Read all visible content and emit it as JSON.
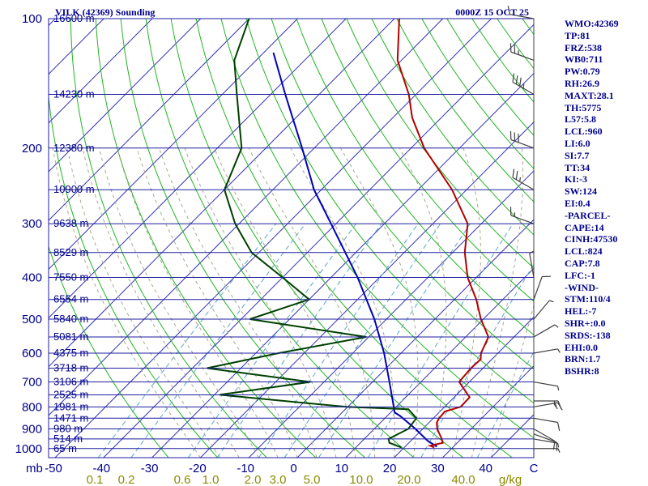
{
  "header": {
    "station": "VILK (42369) Sounding",
    "datetime": "0000Z 15 OCT 25"
  },
  "indices": [
    "WMO:42369",
    "TP:81",
    "FRZ:538",
    "WB0:711",
    "PW:0.79",
    "RH:26.9",
    "MAXT:28.1",
    "TH:5775",
    "L57:5.8",
    "LCL:960",
    "LI:6.0",
    "SI:7.7",
    "TT:34",
    "KI:-3",
    "SW:124",
    "EI:0.4",
    "-PARCEL-",
    "CAPE:14",
    "CINH:47530",
    "LCL:824",
    "CAP:7.8",
    "LFC:-1",
    "-WIND-",
    "STM:110/4",
    "HEL:-7",
    "SHR+:0.0",
    "SRDS:-138",
    "EHI:0.0",
    "BRN:1.7",
    "BSHR:8"
  ],
  "colors": {
    "isobar": "#1e1ea0",
    "isotherm": "#3232b4",
    "dry_adiabat": "#22b422",
    "moist_adiabat": "#a8a890",
    "mixing_ratio": "#5aa8c8",
    "temperature": "#b40000",
    "dewpoint": "#004000",
    "parcel": "#0000b4",
    "wind": "#404040",
    "text": "#00008b"
  },
  "chart_data": {
    "type": "skew-t log-p",
    "pressure_ticks": [
      "100",
      "200",
      "300",
      "400",
      "500",
      "600",
      "700",
      "800",
      "900",
      "1000"
    ],
    "pressure_levels": [
      100,
      200,
      300,
      400,
      500,
      600,
      700,
      800,
      900,
      1000
    ],
    "pressure_unit_label": "mb",
    "temperature_ticks": [
      "-50",
      "-40",
      "-30",
      "-20",
      "-10",
      "0",
      "10",
      "20",
      "30",
      "40",
      "C"
    ],
    "mixing_ratio_unit_label": "g/kg",
    "mixing_ratio_ticks": [
      {
        "label": "0.1",
        "value": 0.1
      },
      {
        "label": "0.2",
        "value": 0.2
      },
      {
        "label": "0.6",
        "value": 0.6
      },
      {
        "label": "1.0",
        "value": 1.0
      },
      {
        "label": "2.0",
        "value": 2.0
      },
      {
        "label": "3.0",
        "value": 3.0
      },
      {
        "label": "5.0",
        "value": 5.0
      },
      {
        "label": "10.0",
        "value": 10.0
      },
      {
        "label": "20.0",
        "value": 20.0
      },
      {
        "label": "40.0",
        "value": 40.0
      }
    ],
    "height_labels": [
      {
        "label": "16600 m",
        "p": 100
      },
      {
        "label": "14230 m",
        "p": 150
      },
      {
        "label": "12380 m",
        "p": 200
      },
      {
        "label": "10900 m",
        "p": 250
      },
      {
        "label": "9638 m",
        "p": 300
      },
      {
        "label": "8529 m",
        "p": 350
      },
      {
        "label": "7550 m",
        "p": 400
      },
      {
        "label": "6554 m",
        "p": 450
      },
      {
        "label": "5840 m",
        "p": 500
      },
      {
        "label": "5081 m",
        "p": 550
      },
      {
        "label": "4375 m",
        "p": 600
      },
      {
        "label": "3718 m",
        "p": 650
      },
      {
        "label": "3106 m",
        "p": 700
      },
      {
        "label": "2525 m",
        "p": 750
      },
      {
        "label": "1981 m",
        "p": 800
      },
      {
        "label": "1471 m",
        "p": 850
      },
      {
        "label": "980 m",
        "p": 900
      },
      {
        "label": "514 m",
        "p": 950
      },
      {
        "label": "65 m",
        "p": 1000
      }
    ],
    "temperature_profile": [
      [
        994,
        26.2
      ],
      [
        985,
        25.0
      ],
      [
        970,
        27.0
      ],
      [
        950,
        26.0
      ],
      [
        900,
        23.0
      ],
      [
        870,
        21.6
      ],
      [
        850,
        21.2
      ],
      [
        820,
        21.0
      ],
      [
        800,
        23.3
      ],
      [
        760,
        23.2
      ],
      [
        700,
        17.9
      ],
      [
        650,
        17.5
      ],
      [
        620,
        17.7
      ],
      [
        600,
        16.5
      ],
      [
        550,
        14.7
      ],
      [
        500,
        9.5
      ],
      [
        450,
        4.5
      ],
      [
        400,
        -1.8
      ],
      [
        350,
        -7.5
      ],
      [
        300,
        -12.8
      ],
      [
        250,
        -23.0
      ],
      [
        200,
        -37.3
      ],
      [
        170,
        -46.0
      ],
      [
        150,
        -51.5
      ],
      [
        125,
        -60.8
      ],
      [
        100,
        -69.0
      ]
    ],
    "dewpoint_profile": [
      [
        994,
        19.4
      ],
      [
        970,
        16.0
      ],
      [
        950,
        15.0
      ],
      [
        900,
        17.0
      ],
      [
        850,
        16.5
      ],
      [
        810,
        13.0
      ],
      [
        800,
        -0.3
      ],
      [
        750,
        -28.9
      ],
      [
        700,
        -12.8
      ],
      [
        650,
        -37.0
      ],
      [
        600,
        -25.3
      ],
      [
        550,
        -10.5
      ],
      [
        500,
        -38.2
      ],
      [
        450,
        -30.0
      ],
      [
        400,
        -40.0
      ],
      [
        350,
        -51.5
      ],
      [
        300,
        -60.8
      ],
      [
        250,
        -70.0
      ],
      [
        200,
        -75.0
      ],
      [
        150,
        -87.0
      ],
      [
        125,
        -94.5
      ],
      [
        100,
        -100.0
      ]
    ],
    "parcel_profile": [
      [
        990,
        26.6
      ],
      [
        960,
        23.5
      ],
      [
        900,
        18.5
      ],
      [
        840,
        12.7
      ],
      [
        824,
        10.8
      ],
      [
        800,
        9.5
      ],
      [
        700,
        3.5
      ],
      [
        600,
        -3.5
      ],
      [
        500,
        -12.5
      ],
      [
        400,
        -24.5
      ],
      [
        300,
        -41.0
      ],
      [
        250,
        -51.5
      ],
      [
        200,
        -62.5
      ],
      [
        150,
        -77.0
      ],
      [
        120,
        -88.0
      ]
    ],
    "wind_profile": [
      {
        "p": 1000,
        "dir": 90,
        "spd": 4
      },
      {
        "p": 950,
        "dir": 100,
        "spd": 6
      },
      {
        "p": 925,
        "dir": 110,
        "spd": 8
      },
      {
        "p": 900,
        "dir": 120,
        "spd": 10
      },
      {
        "p": 850,
        "dir": 100,
        "spd": 12
      },
      {
        "p": 800,
        "dir": 80,
        "spd": 15
      },
      {
        "p": 775,
        "dir": 90,
        "spd": 18
      },
      {
        "p": 700,
        "dir": 100,
        "spd": 6
      },
      {
        "p": 600,
        "dir": 80,
        "spd": 4
      },
      {
        "p": 550,
        "dir": 60,
        "spd": 5
      },
      {
        "p": 500,
        "dir": 40,
        "spd": 5
      },
      {
        "p": 450,
        "dir": 20,
        "spd": 8
      },
      {
        "p": 400,
        "dir": 350,
        "spd": 5
      },
      {
        "p": 300,
        "dir": 290,
        "spd": 15
      },
      {
        "p": 250,
        "dir": 300,
        "spd": 25
      },
      {
        "p": 200,
        "dir": 290,
        "spd": 30
      },
      {
        "p": 150,
        "dir": 300,
        "spd": 35
      },
      {
        "p": 125,
        "dir": 290,
        "spd": 25
      },
      {
        "p": 100,
        "dir": 280,
        "spd": 10
      }
    ]
  }
}
